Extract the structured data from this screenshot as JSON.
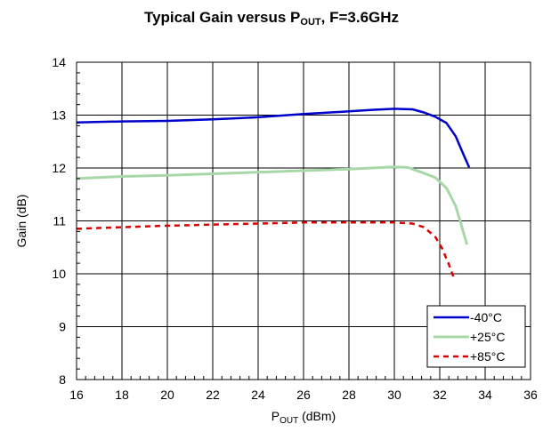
{
  "chart_data": {
    "type": "line",
    "title": {
      "prefix": "Typical Gain versus P",
      "sub": "OUT",
      "suffix": ", F=3.6GHz"
    },
    "xlabel": {
      "main": "P",
      "sub": "OUT",
      "rest": " (dBm)"
    },
    "ylabel": "Gain (dB)",
    "xlim": [
      16,
      36
    ],
    "ylim": [
      8,
      14
    ],
    "xticks": [
      16,
      18,
      20,
      22,
      24,
      26,
      28,
      30,
      32,
      34,
      36
    ],
    "yticks": [
      8,
      9,
      10,
      11,
      12,
      13,
      14
    ],
    "grid": true,
    "legend_position": "bottom-right",
    "series": [
      {
        "name": "-40°C",
        "color": "#0000cc",
        "style": "solid",
        "x": [
          16,
          18,
          20,
          22,
          24,
          26,
          28,
          29,
          30,
          30.8,
          31.3,
          31.8,
          32.3,
          32.7,
          33.0,
          33.3
        ],
        "y": [
          12.86,
          12.88,
          12.89,
          12.92,
          12.96,
          13.02,
          13.07,
          13.1,
          13.12,
          13.11,
          13.05,
          12.97,
          12.85,
          12.6,
          12.3,
          12.01
        ]
      },
      {
        "name": "+25°C",
        "color": "#a8d8a8",
        "style": "solid",
        "x": [
          16,
          18,
          20,
          22,
          24,
          26,
          28,
          29,
          30,
          30.6,
          31.2,
          31.8,
          32.3,
          32.7,
          33.0,
          33.2
        ],
        "y": [
          11.8,
          11.84,
          11.86,
          11.89,
          11.92,
          11.95,
          11.98,
          12.0,
          12.02,
          12.01,
          11.92,
          11.82,
          11.62,
          11.28,
          10.85,
          10.55
        ]
      },
      {
        "name": "+85°C",
        "color": "#dd0000",
        "style": "dashed",
        "x": [
          16,
          18,
          20,
          22,
          24,
          26,
          28,
          29,
          30,
          30.8,
          31.3,
          31.8,
          32.1,
          32.4,
          32.6
        ],
        "y": [
          10.85,
          10.88,
          10.91,
          10.93,
          10.95,
          10.97,
          10.97,
          10.97,
          10.97,
          10.95,
          10.88,
          10.7,
          10.48,
          10.18,
          9.95
        ]
      }
    ]
  }
}
